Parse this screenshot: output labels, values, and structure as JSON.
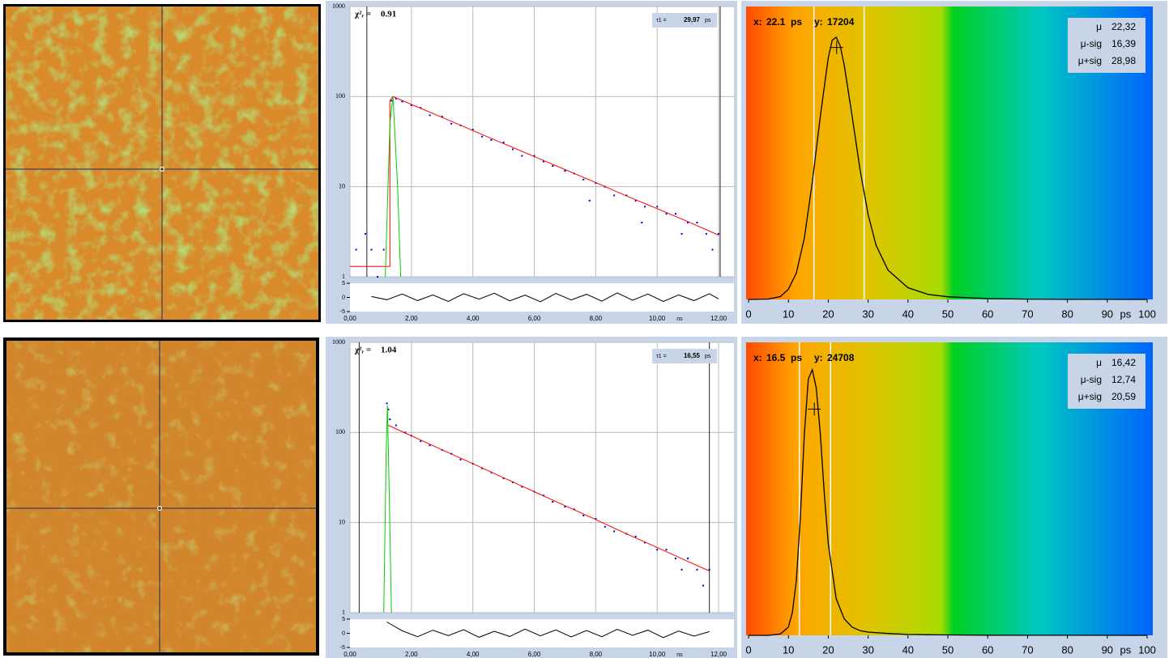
{
  "chart_data": [
    {
      "type": "decay",
      "chi_label": "χ²ᵣ =",
      "chi": 0.91,
      "tau_label": "τ1 =",
      "tau": "29,97",
      "tau_unit": "ps",
      "xlim": [
        0,
        12.5
      ],
      "xticks": [
        {
          "value": 0,
          "label": "0,00"
        },
        {
          "value": 2,
          "label": "2,00"
        },
        {
          "value": 4,
          "label": "4,00"
        },
        {
          "value": 6,
          "label": "6,00"
        },
        {
          "value": 8,
          "label": "8,00"
        },
        {
          "value": 10,
          "label": "10,00"
        },
        {
          "value": 12,
          "label": "12,00"
        }
      ],
      "x_unit": "ns",
      "ylim": [
        1,
        1000
      ],
      "yticks": [
        1,
        10,
        100,
        1000
      ],
      "log_y": true,
      "grid": true,
      "res_ylim": [
        -5,
        5
      ],
      "res_yticks": [
        5,
        0,
        -5
      ],
      "cursors": [
        0.55,
        12.05
      ],
      "series": [
        {
          "mark": "dot",
          "color": "#0000cc",
          "x": [
            0.2,
            0.5,
            0.7,
            0.9,
            1.1,
            1.35,
            1.5,
            1.7,
            2,
            2.3,
            2.6,
            3,
            3.3,
            3.6,
            4,
            4.3,
            4.6,
            5,
            5.3,
            5.6,
            6,
            6.3,
            6.6,
            7,
            7.3,
            7.6,
            7.8,
            8,
            8.3,
            8.6,
            9,
            9.3,
            9.5,
            9.6,
            10,
            10.3,
            10.6,
            10.8,
            11,
            11.3,
            11.6,
            11.8,
            12
          ],
          "values": [
            2,
            3,
            2,
            1,
            2,
            90,
            95,
            88,
            80,
            75,
            62,
            60,
            50,
            48,
            43,
            36,
            33,
            31,
            26,
            22,
            22,
            19,
            17,
            15,
            14,
            12,
            7,
            11,
            10,
            8,
            8,
            7,
            4,
            6,
            6,
            5,
            5,
            3,
            4,
            4,
            3,
            2,
            3
          ]
        },
        {
          "mark": "line",
          "color": "#ff0000",
          "x": [
            0,
            1.3,
            1.3,
            1.4,
            2,
            3,
            4,
            5,
            6,
            7,
            8,
            9,
            10,
            11,
            12
          ],
          "values": [
            1.3,
            1.3,
            90,
            100,
            81.9,
            58.7,
            42,
            30.1,
            21.6,
            15.5,
            11.1,
            7.9,
            5.7,
            4.1,
            2.9
          ]
        },
        {
          "mark": "line",
          "color": "#00cc00",
          "x": [
            1.15,
            1.3,
            1.4,
            1.55,
            1.65
          ],
          "values": [
            1,
            50,
            100,
            10,
            1
          ]
        },
        {
          "mark": "line",
          "color": "#000000",
          "axis": "res",
          "x": [
            0.7,
            1.2,
            1.7,
            2.2,
            2.7,
            3.2,
            3.7,
            4.2,
            4.7,
            5.2,
            5.7,
            6.2,
            6.7,
            7.2,
            7.7,
            8.2,
            8.7,
            9.2,
            9.7,
            10.2,
            10.7,
            11.2,
            11.7,
            12
          ],
          "values": [
            0.3,
            -0.8,
            1.2,
            -1.1,
            0.9,
            -1.4,
            1.3,
            -0.6,
            1.5,
            -1.2,
            0.8,
            -1.5,
            1.4,
            -0.9,
            1.1,
            -1.3,
            1.6,
            -1,
            1.2,
            -1.4,
            0.9,
            -1.1,
            1.3,
            -0.5
          ]
        }
      ]
    },
    {
      "type": "line",
      "cursor_x_label": "x:",
      "cursor_x": 22.1,
      "cursor_x_unit": "ps",
      "cursor_y_label": "y:",
      "cursor_y": 17204,
      "xlim": [
        0,
        100
      ],
      "xticks": [
        0,
        10,
        20,
        30,
        40,
        50,
        60,
        70,
        80,
        90,
        100
      ],
      "x_unit": "ps",
      "ylim": [
        0,
        20000
      ],
      "stats": [
        {
          "label": "μ",
          "value": 22.32,
          "value_label": "22,32"
        },
        {
          "label": "μ-sig",
          "value": 16.39,
          "value_label": "16,39"
        },
        {
          "label": "μ+sig",
          "value": 28.98,
          "value_label": "28,98"
        }
      ],
      "color": "#000000",
      "x": [
        0,
        5,
        8,
        10,
        12,
        14,
        16,
        18,
        20,
        21,
        22,
        23,
        24,
        26,
        28,
        30,
        32,
        35,
        40,
        45,
        50,
        60,
        70,
        80,
        90,
        100
      ],
      "values": [
        0,
        30,
        200,
        700,
        1800,
        4200,
        8000,
        12500,
        16500,
        17700,
        17900,
        17300,
        16000,
        12500,
        8800,
        5800,
        3700,
        2000,
        800,
        350,
        180,
        60,
        20,
        8,
        3,
        0
      ]
    },
    {
      "type": "decay",
      "chi_label": "χ²ᵣ =",
      "chi": 1.04,
      "tau_label": "τ1 =",
      "tau": "16,55",
      "tau_unit": "ps",
      "xlim": [
        0,
        12.5
      ],
      "xticks": [
        {
          "value": 0,
          "label": "0,00"
        },
        {
          "value": 2,
          "label": "2,00"
        },
        {
          "value": 4,
          "label": "4,00"
        },
        {
          "value": 6,
          "label": "6,00"
        },
        {
          "value": 8,
          "label": "8,00"
        },
        {
          "value": 10,
          "label": "10,00"
        },
        {
          "value": 12,
          "label": "12,00"
        }
      ],
      "x_unit": "ns",
      "ylim": [
        1,
        1000
      ],
      "yticks": [
        1,
        10,
        100,
        1000
      ],
      "log_y": true,
      "grid": true,
      "res_ylim": [
        -5,
        5
      ],
      "res_yticks": [
        5,
        0,
        -5
      ],
      "cursors": [
        0.3,
        11.7
      ],
      "series": [
        {
          "mark": "dot",
          "color": "#0000cc",
          "x": [
            1.2,
            1.25,
            1.3,
            1.5,
            1.8,
            2,
            2.3,
            2.6,
            3,
            3.3,
            3.6,
            4,
            4.3,
            4.6,
            5,
            5.3,
            5.6,
            6,
            6.3,
            6.6,
            7,
            7.3,
            7.6,
            8,
            8.3,
            8.6,
            9,
            9.3,
            9.6,
            10,
            10.3,
            10.6,
            10.8,
            11,
            11.3,
            11.5,
            11.7
          ],
          "values": [
            210,
            180,
            140,
            120,
            100,
            92,
            80,
            72,
            64,
            58,
            50,
            45,
            40,
            36,
            31,
            28,
            25,
            22,
            20,
            17,
            15,
            14,
            12,
            11,
            9,
            8,
            7.5,
            7,
            6,
            5,
            5,
            4,
            3,
            4,
            3,
            2,
            3
          ]
        },
        {
          "mark": "line",
          "color": "#ff0000",
          "x": [
            1.25,
            2,
            3,
            4,
            5,
            6,
            7,
            8,
            9,
            10,
            11,
            11.7
          ],
          "values": [
            120,
            91.8,
            64.2,
            45,
            31.4,
            22,
            15.4,
            10.8,
            7.5,
            5.3,
            3.7,
            2.9
          ]
        },
        {
          "mark": "line",
          "color": "#00cc00",
          "x": [
            1.1,
            1.18,
            1.22,
            1.28,
            1.35
          ],
          "values": [
            1,
            60,
            200,
            20,
            1
          ]
        },
        {
          "mark": "line",
          "color": "#000000",
          "axis": "res",
          "x": [
            1.2,
            1.7,
            2.2,
            2.7,
            3.2,
            3.7,
            4.2,
            4.7,
            5.2,
            5.7,
            6.2,
            6.7,
            7.2,
            7.7,
            8.2,
            8.7,
            9.2,
            9.7,
            10.2,
            10.7,
            11.2,
            11.7
          ],
          "values": [
            4,
            0.9,
            -1.2,
            1.1,
            -0.8,
            1.3,
            -1.4,
            0.7,
            -1.1,
            1.5,
            -0.9,
            1.2,
            -1.3,
            1,
            -1.2,
            1.4,
            -0.7,
            1.1,
            -1.5,
            0.8,
            -1,
            0.6
          ]
        }
      ]
    },
    {
      "type": "line",
      "cursor_x_label": "x:",
      "cursor_x": 16.5,
      "cursor_x_unit": "ps",
      "cursor_y_label": "y:",
      "cursor_y": 24708,
      "xlim": [
        0,
        100
      ],
      "xticks": [
        0,
        10,
        20,
        30,
        40,
        50,
        60,
        70,
        80,
        90,
        100
      ],
      "x_unit": "ps",
      "ylim": [
        0,
        32000
      ],
      "stats": [
        {
          "label": "μ",
          "value": 16.42,
          "value_label": "16,42"
        },
        {
          "label": "μ-sig",
          "value": 12.74,
          "value_label": "12,74"
        },
        {
          "label": "μ+sig",
          "value": 20.59,
          "value_label": "20,59"
        }
      ],
      "color": "#000000",
      "x": [
        0,
        5,
        8,
        10,
        11,
        12,
        13,
        14,
        15,
        16,
        17,
        18,
        19,
        20,
        22,
        24,
        26,
        28,
        30,
        35,
        40,
        50,
        60,
        80,
        100
      ],
      "values": [
        0,
        0,
        150,
        900,
        2500,
        6000,
        13000,
        22000,
        28000,
        29000,
        27000,
        22000,
        15500,
        10000,
        4000,
        1800,
        900,
        500,
        350,
        200,
        100,
        40,
        15,
        5,
        0
      ]
    }
  ]
}
